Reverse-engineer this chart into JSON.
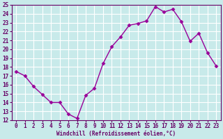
{
  "x": [
    0,
    1,
    2,
    3,
    4,
    5,
    6,
    7,
    8,
    9,
    10,
    11,
    12,
    13,
    14,
    15,
    16,
    17,
    18,
    19,
    20,
    21,
    22,
    23
  ],
  "y": [
    17.5,
    17.0,
    15.8,
    14.9,
    14.0,
    14.0,
    12.7,
    12.2,
    14.8,
    15.6,
    18.4,
    20.3,
    21.4,
    22.7,
    22.9,
    23.2,
    24.8,
    24.2,
    24.5,
    23.1,
    20.9,
    21.8,
    19.6,
    18.1
  ],
  "line_color": "#990099",
  "marker": "D",
  "marker_size": 2.5,
  "bg_color": "#c8eaea",
  "grid_color": "#aaaaaa",
  "xlabel": "Windchill (Refroidissement éolien,°C)",
  "xlabel_color": "#660066",
  "tick_color": "#660066",
  "ylim": [
    12,
    25
  ],
  "xlim_min": -0.5,
  "xlim_max": 23.5,
  "yticks": [
    12,
    13,
    14,
    15,
    16,
    17,
    18,
    19,
    20,
    21,
    22,
    23,
    24,
    25
  ],
  "xticks": [
    0,
    1,
    2,
    3,
    4,
    5,
    6,
    7,
    8,
    9,
    10,
    11,
    12,
    13,
    14,
    15,
    16,
    17,
    18,
    19,
    20,
    21,
    22,
    23
  ],
  "xlabel_fontsize": 5.5,
  "tick_labelsize": 5.5,
  "linewidth": 1.0,
  "fig_width": 3.2,
  "fig_height": 2.0,
  "dpi": 100
}
